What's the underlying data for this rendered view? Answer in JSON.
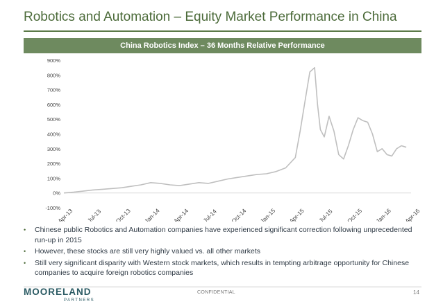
{
  "slide": {
    "title": "Robotics and Automation – Equity Market Performance in China",
    "banner": "China Robotics Index – 36 Months Relative Performance",
    "bullets": [
      "Chinese public Robotics and Automation companies have experienced significant correction following unprecedented run-up in 2015",
      "However, these stocks are still very highly valued vs. all other markets",
      "Still very significant disparity with Western stock markets, which results in tempting arbitrage opportunity for Chinese companies to acquire foreign robotics companies"
    ],
    "bullet_glyph": "•",
    "footer": {
      "logo_main": "MOORELAND",
      "logo_sub": "PARTNERS",
      "confidential": "CONFIDENTIAL",
      "page_number": "14"
    },
    "colors": {
      "accent": "#4c6b3a",
      "banner_bg": "#6e8a5f",
      "line": "#bfbfbf",
      "logo": "#2a5a63"
    }
  },
  "chart_data": {
    "type": "line",
    "title": "China Robotics Index – 36 Months Relative Performance",
    "xlabel": "",
    "ylabel": "",
    "ylim": [
      -100,
      900
    ],
    "yticks": [
      -100,
      0,
      100,
      200,
      300,
      400,
      500,
      600,
      700,
      800,
      900
    ],
    "ytick_labels": [
      "-100%",
      "0%",
      "100%",
      "200%",
      "300%",
      "400%",
      "500%",
      "600%",
      "700%",
      "800%",
      "900%"
    ],
    "xlim": [
      0,
      36
    ],
    "xticks": [
      0,
      3,
      6,
      9,
      12,
      15,
      18,
      21,
      24,
      27,
      30,
      33,
      36
    ],
    "xtick_labels": [
      "Apr-13",
      "Jul-13",
      "Oct-13",
      "Jan-14",
      "Apr-14",
      "Jul-14",
      "Oct-14",
      "Jan-15",
      "Apr-15",
      "Jul-15",
      "Oct-15",
      "Jan-16",
      "Apr-16"
    ],
    "grid": false,
    "series": [
      {
        "name": "China Robotics Index",
        "x": [
          0,
          1,
          2,
          3,
          4,
          5,
          6,
          7,
          8,
          9,
          10,
          11,
          12,
          13,
          14,
          15,
          16,
          17,
          18,
          19,
          20,
          21,
          22,
          23,
          24,
          24.5,
          25,
          25.5,
          26,
          26.3,
          26.6,
          27,
          27.5,
          28,
          28.5,
          29,
          29.5,
          30,
          30.5,
          31,
          31.5,
          32,
          32.5,
          33,
          33.5,
          34,
          34.5,
          35,
          35.5
        ],
        "values": [
          0,
          5,
          12,
          20,
          25,
          30,
          35,
          45,
          55,
          70,
          65,
          55,
          50,
          60,
          70,
          65,
          80,
          95,
          105,
          115,
          125,
          130,
          145,
          170,
          240,
          420,
          620,
          820,
          850,
          600,
          430,
          380,
          520,
          420,
          260,
          230,
          320,
          430,
          510,
          490,
          480,
          400,
          280,
          300,
          260,
          250,
          300,
          320,
          310
        ]
      }
    ]
  }
}
